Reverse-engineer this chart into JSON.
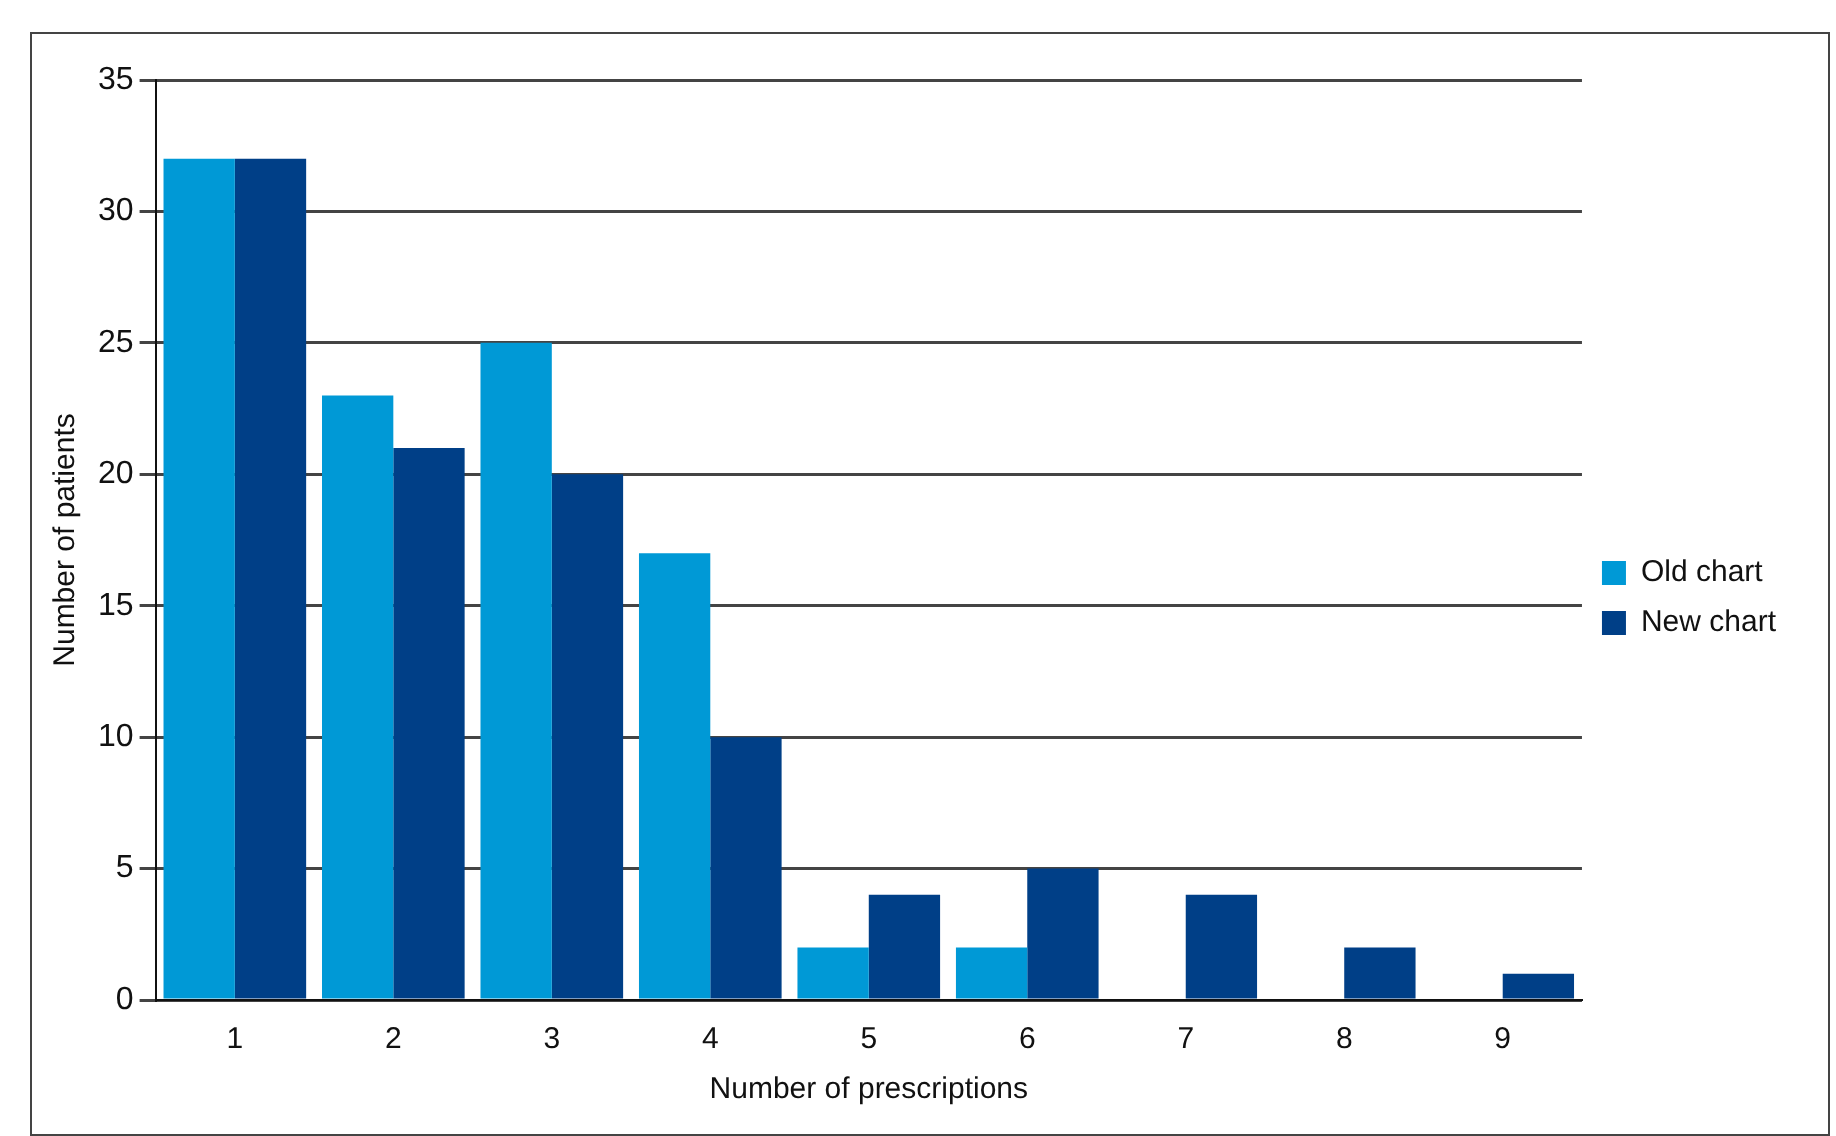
{
  "chart_data": {
    "type": "bar",
    "xlabel": "Number of prescriptions",
    "ylabel": "Number of patients",
    "categories": [
      "1",
      "2",
      "3",
      "4",
      "5",
      "6",
      "7",
      "8",
      "9"
    ],
    "series": [
      {
        "name": "Old chart",
        "color": "#0099d6",
        "values": [
          32,
          23,
          25,
          17,
          2,
          2,
          0,
          0,
          0
        ]
      },
      {
        "name": "New chart",
        "color": "#003f87",
        "values": [
          32,
          21,
          20,
          10,
          4,
          5,
          4,
          2,
          1
        ]
      }
    ],
    "ylim": [
      0,
      35
    ],
    "yticks": [
      0,
      5,
      10,
      15,
      20,
      25,
      30,
      35
    ],
    "grid": "y",
    "legend": "right"
  }
}
